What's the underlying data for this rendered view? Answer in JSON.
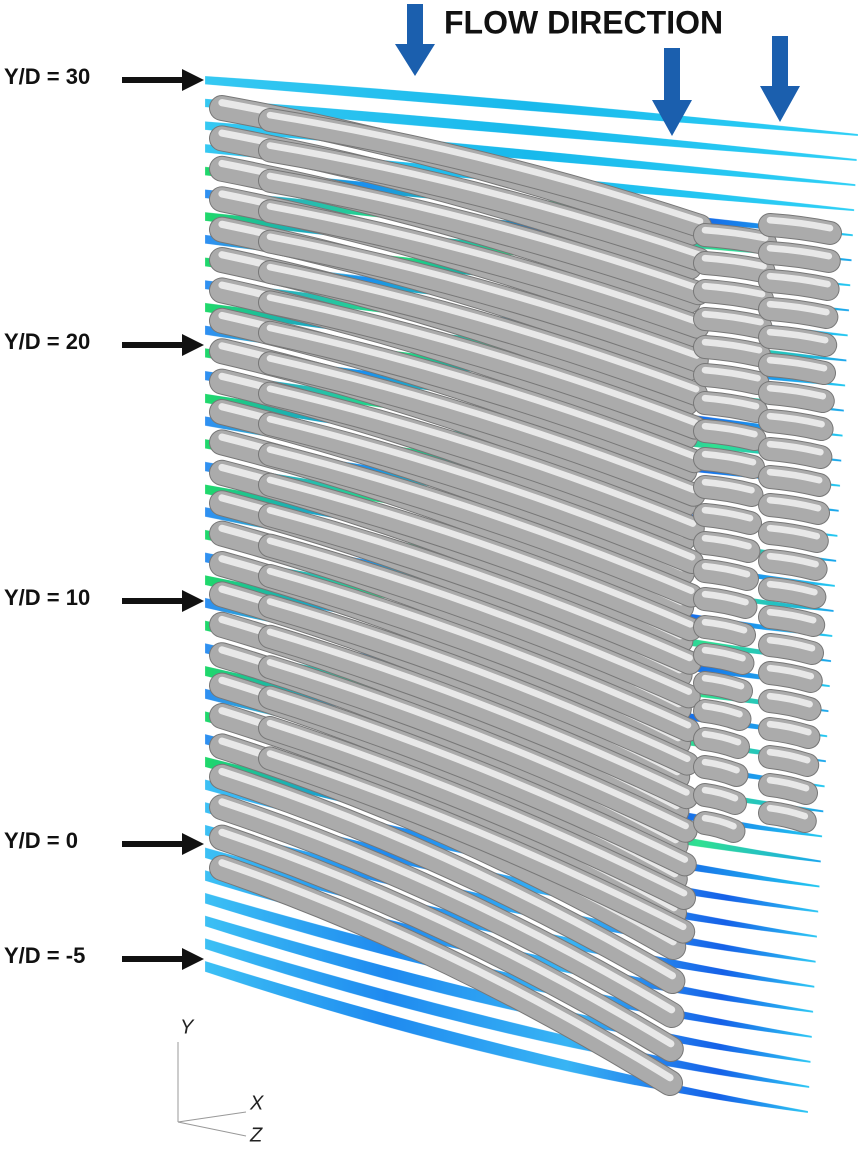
{
  "labels": {
    "flow_direction": "FLOW DIRECTION",
    "levels": [
      "Y/D = 30",
      "Y/D = 20",
      "Y/D = 10",
      "Y/D = 0",
      "Y/D = -5"
    ],
    "axes": {
      "y": "Y",
      "x": "X",
      "z": "Z"
    }
  }
}
